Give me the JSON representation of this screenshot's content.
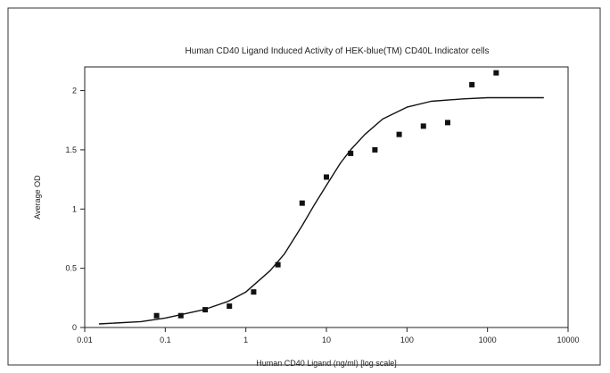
{
  "chart_data": {
    "type": "scatter",
    "title": "Human CD40 Ligand Induced Activity of HEK-blue(TM) CD40L Indicator cells",
    "xlabel": "Human CD40 Ligand (ng/ml) [log scale]",
    "ylabel": "Average OD",
    "x_scale": "log",
    "xlim": [
      0.01,
      10000
    ],
    "ylim": [
      0,
      2.2
    ],
    "x_ticks": [
      "0.01",
      "0.1",
      "1",
      "10",
      "100",
      "1000",
      "10000"
    ],
    "y_ticks": [
      "0",
      "0.5",
      "1",
      "1.5",
      "2"
    ],
    "grid": false,
    "legend": "none",
    "series": [
      {
        "kind": "points",
        "marker": "square",
        "x": [
          0.078,
          0.156,
          0.313,
          0.625,
          1.25,
          2.5,
          5,
          10,
          20,
          40,
          80,
          160,
          320,
          640,
          1280
        ],
        "y": [
          0.1,
          0.1,
          0.15,
          0.18,
          0.3,
          0.53,
          1.05,
          1.27,
          1.47,
          1.5,
          1.63,
          1.7,
          1.73,
          2.05,
          2.15
        ]
      },
      {
        "kind": "fit-curve",
        "x": [
          0.015,
          0.05,
          0.1,
          0.3,
          0.6,
          1,
          2,
          3,
          5,
          7,
          10,
          15,
          20,
          30,
          50,
          100,
          200,
          500,
          1000,
          5000
        ],
        "y": [
          0.03,
          0.05,
          0.08,
          0.15,
          0.22,
          0.3,
          0.48,
          0.62,
          0.86,
          1.03,
          1.2,
          1.39,
          1.5,
          1.63,
          1.76,
          1.86,
          1.91,
          1.93,
          1.94,
          1.94
        ]
      }
    ]
  }
}
